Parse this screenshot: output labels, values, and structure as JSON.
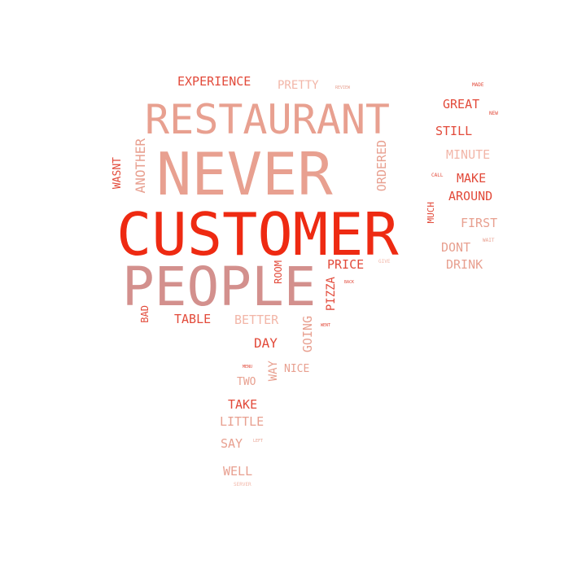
{
  "colors": {
    "background": "#ffffff",
    "deep_red": "#ee2a12",
    "red": "#e24a3a",
    "salmon": "#e8a090",
    "light_salmon": "#f2b6a8",
    "pale": "#f4cfc6",
    "mauve": "#d3908d"
  },
  "words": {
    "customer": "CUSTOMER",
    "never": "NEVER",
    "restaurant": "RESTAURANT",
    "people": "PEOPLE",
    "experience": "EXPERIENCE",
    "pretty": "PRETTY",
    "another": "ANOTHER",
    "wasnt": "WASNT",
    "ordered": "ORDERED",
    "price": "PRICE",
    "pizza": "PIZZA",
    "room": "ROOM",
    "table": "TABLE",
    "better": "BETTER",
    "bad": "BAD",
    "going": "GOING",
    "day": "DAY",
    "way": "WAY",
    "nice": "NICE",
    "two": "TWO",
    "take": "TAKE",
    "little": "LITTLE",
    "say": "SAY",
    "well": "WELL",
    "great": "GREAT",
    "still": "STILL",
    "minute": "MINUTE",
    "make": "MAKE",
    "around": "AROUND",
    "first": "FIRST",
    "dont": "DONT",
    "drink": "DRINK",
    "much": "MUCH",
    "made": "MADE",
    "new": "NEW",
    "call": "CALL",
    "wait": "WAIT",
    "give": "GIVE",
    "back": "BACK",
    "went": "WENT",
    "review": "REVIEW",
    "menu": "MENU",
    "server": "SERVER",
    "left": "LEFT"
  }
}
